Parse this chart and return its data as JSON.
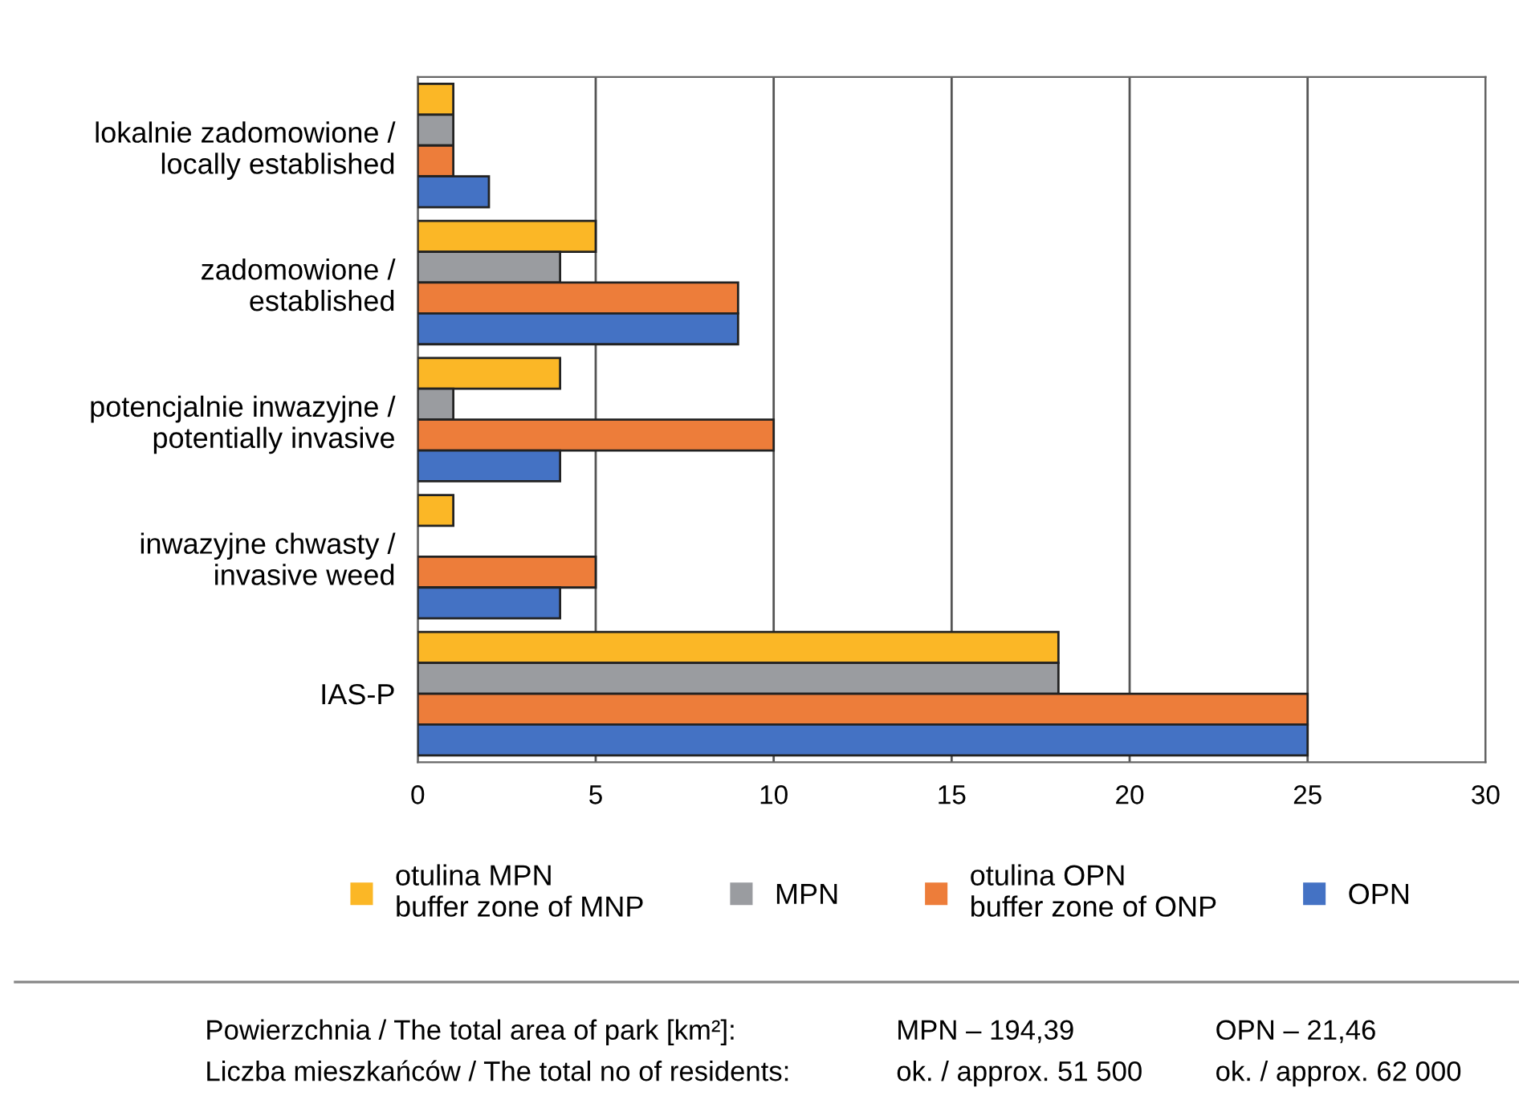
{
  "chart_data": {
    "type": "bar",
    "orientation": "horizontal",
    "categories": [
      "lokalnie zadomowione /\nlocally established",
      "zadomowione /\nestablished",
      "potencjalnie inwazyjne /\npotentially invasive",
      "inwazyjne chwasty /\ninvasive weed",
      "IAS-P"
    ],
    "series": [
      {
        "name": "otulina MPN\nbuffer zone of MNP",
        "color": "#fbb726",
        "values": [
          1,
          5,
          4,
          1,
          18
        ]
      },
      {
        "name": "MPN",
        "color": "#9a9ca0",
        "values": [
          1,
          4,
          1,
          null,
          18
        ]
      },
      {
        "name": "otulina OPN\nbuffer zone of ONP",
        "color": "#ed7d3a",
        "values": [
          1,
          9,
          10,
          5,
          25
        ]
      },
      {
        "name": "OPN",
        "color": "#4472c4",
        "values": [
          2,
          9,
          4,
          4,
          25
        ]
      }
    ],
    "xlim": [
      0,
      30
    ],
    "xticks": [
      0,
      5,
      10,
      15,
      20,
      25,
      30
    ],
    "grid": "x",
    "legend": "bottom",
    "annotations": [
      "Powierzchnia / The total area of park [km²]:",
      "MPN – 194,39",
      "OPN – 21,46",
      "Liczba mieszkańców / The total no of residents:",
      "ok. / approx. 51 500",
      "ok. / approx. 62 000"
    ]
  }
}
